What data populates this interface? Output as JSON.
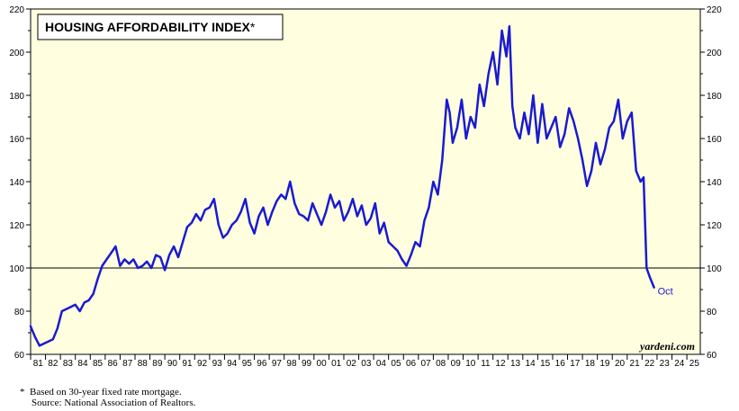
{
  "chart_data": {
    "type": "line",
    "title": "HOUSING AFFORDABILITY INDEX",
    "title_marker": "*",
    "ylim": [
      60,
      220
    ],
    "y_ticks": [
      60,
      80,
      100,
      120,
      140,
      160,
      180,
      200,
      220
    ],
    "y_tick_labels": [
      "60",
      "80",
      "100",
      "120",
      "140",
      "160",
      "180",
      "200",
      "220"
    ],
    "x_range": [
      1981.0,
      2025.9
    ],
    "x_tick_labels": [
      "81",
      "82",
      "83",
      "84",
      "85",
      "86",
      "87",
      "88",
      "89",
      "90",
      "91",
      "92",
      "93",
      "94",
      "95",
      "96",
      "97",
      "98",
      "99",
      "00",
      "01",
      "02",
      "03",
      "04",
      "05",
      "06",
      "07",
      "08",
      "09",
      "10",
      "11",
      "12",
      "13",
      "14",
      "15",
      "16",
      "17",
      "18",
      "19",
      "20",
      "21",
      "22",
      "23",
      "24",
      "25"
    ],
    "reference_line": 100,
    "line_color": "#1a1ad0",
    "plot_background": "#ffffe0",
    "grid": false,
    "annotation": "Oct",
    "credit": "yardeni.com",
    "series": [
      {
        "x": [
          1981.0,
          1981.3,
          1981.6,
          1981.9,
          1982.2,
          1982.5,
          1982.8,
          1983.1,
          1983.4,
          1983.7,
          1984.0,
          1984.3,
          1984.6,
          1984.9,
          1985.2,
          1985.5,
          1985.8,
          1986.1,
          1986.4,
          1986.7,
          1987.0,
          1987.3,
          1987.6,
          1987.9,
          1988.2,
          1988.5,
          1988.8,
          1989.1,
          1989.4,
          1989.7,
          1990.0,
          1990.3,
          1990.6,
          1990.9,
          1991.2,
          1991.5,
          1991.8,
          1992.1,
          1992.4,
          1992.7,
          1993.0,
          1993.3,
          1993.6,
          1993.9,
          1994.2,
          1994.5,
          1994.8,
          1995.1,
          1995.4,
          1995.7,
          1996.0,
          1996.3,
          1996.6,
          1996.9,
          1997.2,
          1997.5,
          1997.8,
          1998.1,
          1998.4,
          1998.7,
          1999.0,
          1999.3,
          1999.6,
          1999.9,
          2000.2,
          2000.5,
          2000.8,
          2001.1,
          2001.4,
          2001.7,
          2002.0,
          2002.3,
          2002.6,
          2002.9,
          2003.2,
          2003.5,
          2003.8,
          2004.1,
          2004.4,
          2004.7,
          2005.0,
          2005.3,
          2005.6,
          2005.9,
          2006.2,
          2006.5,
          2006.8,
          2007.1,
          2007.4,
          2007.7,
          2008.0,
          2008.3,
          2008.6,
          2008.9,
          2009.1,
          2009.3,
          2009.6,
          2009.9,
          2010.2,
          2010.5,
          2010.8,
          2011.1,
          2011.4,
          2011.7,
          2012.0,
          2012.3,
          2012.6,
          2012.9,
          2013.1,
          2013.3,
          2013.5,
          2013.8,
          2014.1,
          2014.4,
          2014.7,
          2015.0,
          2015.3,
          2015.6,
          2015.9,
          2016.2,
          2016.5,
          2016.8,
          2017.1,
          2017.4,
          2017.7,
          2018.0,
          2018.3,
          2018.6,
          2018.9,
          2019.2,
          2019.5,
          2019.8,
          2020.1,
          2020.4,
          2020.7,
          2021.0,
          2021.3,
          2021.6,
          2021.9,
          2022.1,
          2022.3,
          2022.5,
          2022.8
        ],
        "y": [
          73,
          68,
          64,
          65,
          66,
          67,
          72,
          80,
          81,
          82,
          83,
          80,
          84,
          85,
          88,
          95,
          101,
          104,
          107,
          110,
          101,
          104,
          102,
          104,
          100,
          101,
          103,
          100,
          106,
          105,
          99,
          106,
          110,
          105,
          112,
          119,
          121,
          125,
          122,
          127,
          128,
          132,
          120,
          114,
          116,
          120,
          122,
          126,
          132,
          121,
          116,
          124,
          128,
          120,
          126,
          131,
          134,
          132,
          140,
          130,
          125,
          124,
          122,
          130,
          125,
          120,
          126,
          134,
          128,
          131,
          122,
          126,
          132,
          124,
          129,
          120,
          123,
          130,
          116,
          121,
          112,
          110,
          108,
          104,
          101,
          106,
          112,
          110,
          122,
          128,
          140,
          134,
          150,
          178,
          172,
          158,
          165,
          178,
          160,
          170,
          165,
          185,
          175,
          190,
          200,
          185,
          210,
          198,
          212,
          175,
          165,
          160,
          172,
          162,
          180,
          158,
          176,
          160,
          165,
          170,
          156,
          162,
          174,
          168,
          160,
          150,
          138,
          145,
          158,
          148,
          155,
          165,
          168,
          178,
          160,
          168,
          172,
          145,
          140,
          142,
          100,
          96,
          91
        ]
      }
    ]
  },
  "footnote": {
    "marker": "*",
    "line1": "Based on 30-year fixed rate mortgage.",
    "line2": "Source: National Association of Realtors."
  }
}
